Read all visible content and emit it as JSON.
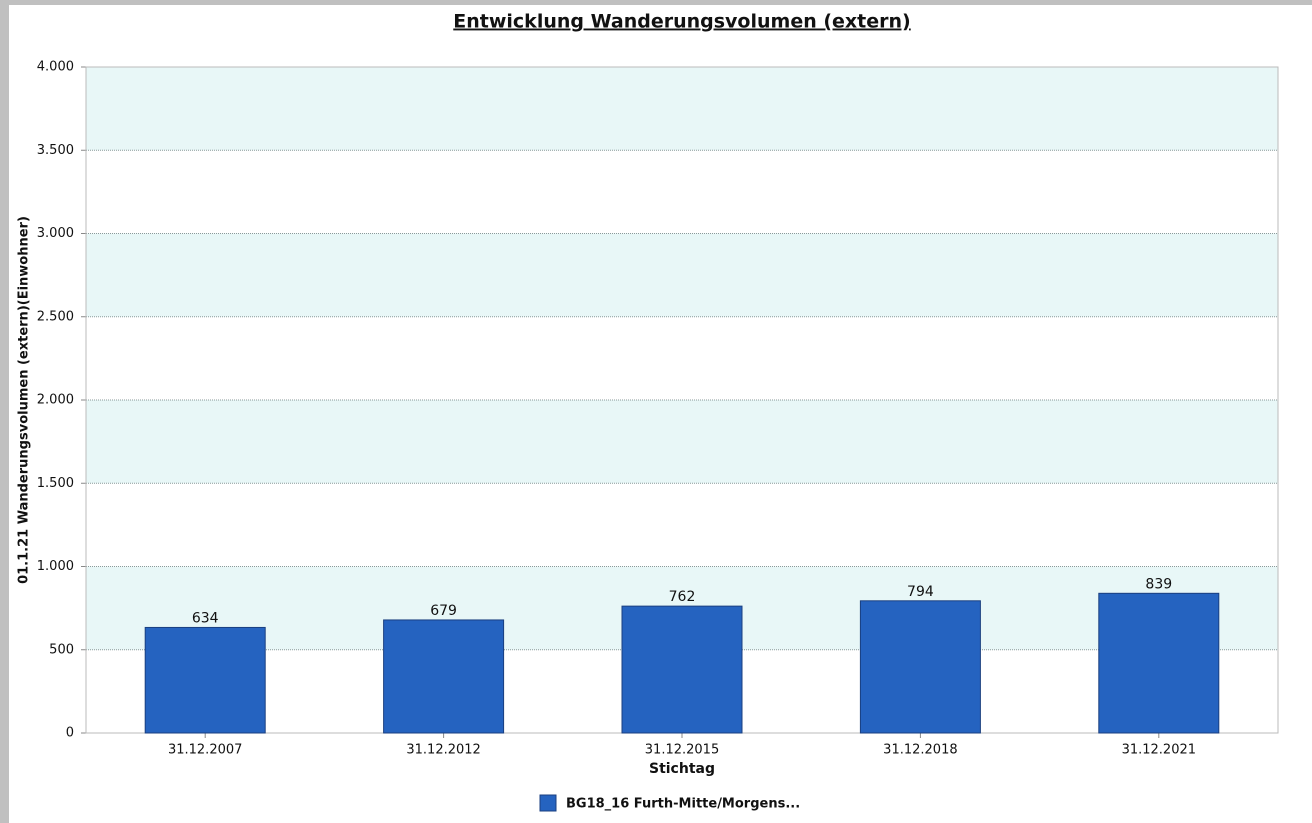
{
  "chart_data": {
    "type": "bar",
    "title": "Entwicklung Wanderungsvolumen (extern)",
    "x_label": "Stichtag",
    "y_label": "01.1.21  Wanderungsvolumen  (extern)(Einwohner)",
    "categories": [
      "31.12.2007",
      "31.12.2012",
      "31.12.2015",
      "31.12.2018",
      "31.12.2021"
    ],
    "series": [
      {
        "name": "BG18_16 Furth-Mitte/Morgens...",
        "color": "#2563c0",
        "values": [
          634,
          679,
          762,
          794,
          839
        ]
      }
    ],
    "ylim": [
      0,
      4000
    ],
    "yticks": [
      0,
      500,
      {
        "value": 1000,
        "label": "1.000"
      },
      {
        "value": 1500,
        "label": "1.500"
      },
      {
        "value": 2000,
        "label": "2.000"
      },
      {
        "value": 2500,
        "label": "2.500"
      },
      {
        "value": 3000,
        "label": "3.000"
      },
      {
        "value": 3500,
        "label": "3.500"
      },
      {
        "value": 4000,
        "label": "4.000"
      }
    ],
    "grid": true,
    "band_color": "#e8f7f7",
    "legend": "bottom"
  }
}
